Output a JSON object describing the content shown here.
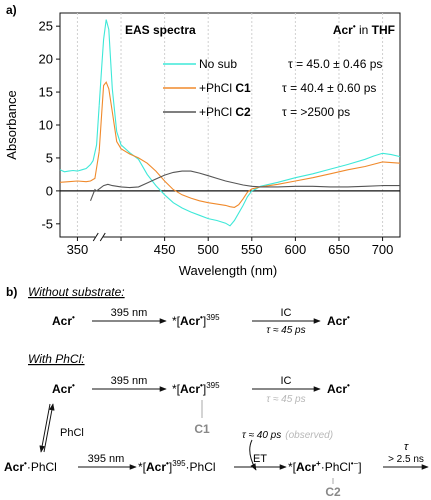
{
  "panel_a": {
    "label": "a)",
    "chart_data": {
      "type": "line",
      "title": "EAS spectra",
      "subtitle_prefix": "Acr",
      "subtitle_sup": "•",
      "subtitle_mid": " in ",
      "subtitle_solvent": "THF",
      "xlabel": "Wavelength (nm)",
      "ylabel": "Absorbance",
      "xlim": [
        330,
        720
      ],
      "ylim": [
        -7,
        27
      ],
      "axis_break_x": 375,
      "x_ticks": [
        350,
        400,
        450,
        500,
        550,
        600,
        650,
        700
      ],
      "x_tick_labels": [
        "350",
        "",
        "450",
        "500",
        "550",
        "600",
        "650",
        "700"
      ],
      "y_ticks": [
        -5,
        0,
        5,
        10,
        15,
        20,
        25
      ],
      "y_tick_labels": [
        "-5",
        "0",
        "5",
        "10",
        "15",
        "20",
        "25"
      ],
      "grid": "vertical dashed",
      "legend_placement": "right",
      "series": [
        {
          "name": "No sub",
          "legend_prefix": "No sub",
          "legend_bold": "",
          "tau": "τ = 45.0 ± 0.46 ps",
          "color": "#3ee8d8",
          "x": [
            330,
            335,
            340,
            345,
            350,
            355,
            360,
            365,
            368,
            372,
            375,
            378,
            380,
            383,
            386,
            390,
            395,
            400,
            410,
            420,
            430,
            440,
            450,
            460,
            470,
            480,
            490,
            500,
            510,
            520,
            525,
            530,
            540,
            545,
            550,
            555,
            560,
            580,
            600,
            620,
            640,
            660,
            680,
            690,
            700,
            710,
            720
          ],
          "y": [
            3.2,
            2.9,
            3.0,
            3.1,
            3.0,
            3.2,
            3.4,
            4.0,
            4.6,
            7.0,
            13.0,
            19.0,
            23.0,
            26.0,
            24.5,
            15.5,
            9.0,
            7.0,
            5.8,
            4.8,
            2.5,
            0.8,
            -0.6,
            -1.8,
            -2.6,
            -3.2,
            -3.7,
            -4.2,
            -4.5,
            -4.9,
            -5.3,
            -4.5,
            -2.2,
            -0.9,
            0.0,
            0.3,
            0.7,
            1.3,
            2.0,
            2.6,
            3.3,
            4.0,
            4.8,
            5.3,
            5.7,
            5.5,
            5.2
          ]
        },
        {
          "name": "+PhCl C1",
          "legend_prefix": "+PhCl ",
          "legend_bold": "C1",
          "tau": "τ = 40.4 ± 0.60 ps",
          "color": "#f08a2c",
          "x": [
            330,
            340,
            350,
            360,
            365,
            370,
            375,
            378,
            380,
            383,
            386,
            390,
            395,
            400,
            410,
            420,
            430,
            440,
            450,
            460,
            470,
            480,
            490,
            500,
            510,
            520,
            525,
            530,
            535,
            540,
            545,
            550,
            560,
            580,
            600,
            620,
            640,
            660,
            680,
            700,
            710,
            720
          ],
          "y": [
            1.3,
            1.4,
            1.5,
            1.4,
            1.5,
            1.9,
            6.0,
            12.0,
            16.0,
            16.5,
            15.5,
            12.0,
            7.5,
            6.4,
            5.6,
            5.0,
            4.2,
            3.0,
            1.5,
            0.2,
            -0.6,
            -1.1,
            -1.5,
            -1.8,
            -2.0,
            -2.2,
            -2.4,
            -2.5,
            -2.1,
            -1.2,
            -0.2,
            0.3,
            0.6,
            1.0,
            1.5,
            2.0,
            2.6,
            3.2,
            3.7,
            4.4,
            4.3,
            4.2
          ]
        },
        {
          "name": "+PhCl C2",
          "legend_prefix": "+PhCl ",
          "legend_bold": "C2",
          "tau": "τ = >2500 ps",
          "color": "#555555",
          "x": [
            365,
            368,
            370,
            372,
            375,
            380,
            385,
            390,
            400,
            410,
            420,
            430,
            440,
            450,
            460,
            470,
            480,
            490,
            500,
            510,
            520,
            530,
            540,
            550,
            560,
            580,
            600,
            620,
            640,
            660,
            680,
            700,
            720
          ],
          "y": [
            -1.5,
            -0.5,
            0.2,
            0.0,
            0.3,
            0.8,
            1.0,
            0.8,
            0.6,
            0.5,
            0.6,
            1.2,
            1.8,
            2.4,
            2.8,
            3.0,
            3.0,
            2.7,
            2.3,
            1.9,
            1.5,
            1.2,
            0.9,
            0.7,
            0.6,
            0.6,
            0.7,
            0.7,
            0.6,
            0.6,
            0.7,
            0.8,
            0.8
          ]
        }
      ]
    }
  },
  "panel_b": {
    "label": "b)",
    "without_heading": "Without substrate:",
    "with_heading": "With PhCl:",
    "acr": "Acr",
    "dot": "•",
    "acr_plus": "Acr",
    "plus": "+",
    "star": "*",
    "bracket_open": "[",
    "bracket_close": "]",
    "sup_395": "395",
    "arrow_395": "395 nm",
    "arrow_ic": "IC",
    "tau_45": "τ ≈ 45 ps",
    "tau_45_grey": "τ ≈ 45 ps",
    "tau_40": "τ ≈ 40 ps",
    "observed": "(observed)",
    "phcl": "PhCl",
    "phcl_part": "PhCl",
    "phcl_minus": "•−",
    "et": "ET",
    "c1": "C1",
    "c2": "C2",
    "tau_sym": "τ",
    "tau_25": "> 2.5 ns",
    "middot": "·"
  }
}
